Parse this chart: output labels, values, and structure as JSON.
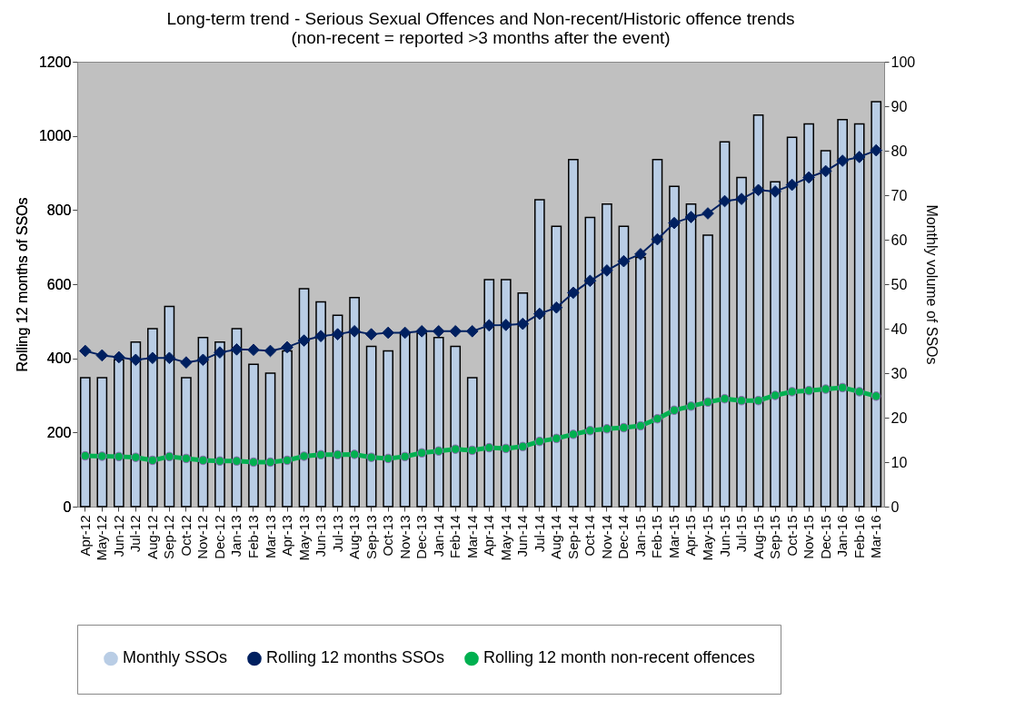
{
  "chart_data": {
    "type": "bar",
    "title": "Long-term trend - Serious Sexual Offences and Non-recent/Historic offence trends",
    "subtitle": "(non-recent = reported >3 months after the event)",
    "ylabel": "Rolling 12 months of SSOs",
    "y2label": "Monthly volume of SSOs",
    "categories": [
      "Apr-12",
      "May-12",
      "Jun-12",
      "Jul-12",
      "Aug-12",
      "Sep-12",
      "Oct-12",
      "Nov-12",
      "Dec-12",
      "Jan-13",
      "Feb-13",
      "Mar-13",
      "Apr-13",
      "May-13",
      "Jun-13",
      "Jul-13",
      "Aug-13",
      "Sep-13",
      "Oct-13",
      "Nov-13",
      "Dec-13",
      "Jan-14",
      "Feb-14",
      "Mar-14",
      "Apr-14",
      "May-14",
      "Jun-14",
      "Jul-14",
      "Aug-14",
      "Sep-14",
      "Oct-14",
      "Nov-14",
      "Dec-14",
      "Jan-15",
      "Feb-15",
      "Mar-15",
      "Apr-15",
      "May-15",
      "Jun-15",
      "Jul-15",
      "Aug-15",
      "Sep-15",
      "Oct-15",
      "Nov-15",
      "Dec-15",
      "Jan-16",
      "Feb-16",
      "Mar-16"
    ],
    "series": [
      {
        "name": "Monthly SSOs",
        "axis": "y2",
        "color": "#b9cde5",
        "values": [
          29,
          29,
          33,
          37,
          40,
          45,
          29,
          38,
          37,
          40,
          32,
          30,
          35,
          49,
          46,
          43,
          47,
          36,
          35,
          39,
          39,
          38,
          36,
          29,
          51,
          51,
          48,
          69,
          63,
          78,
          65,
          68,
          63,
          56,
          78,
          72,
          68,
          61,
          82,
          74,
          88,
          73,
          83,
          86,
          80,
          87,
          86,
          91
        ]
      },
      {
        "name": "Rolling 12 months SSOs",
        "type": "line",
        "marker": "diamond",
        "color": "#002060",
        "values": [
          420,
          408,
          403,
          396,
          401,
          401,
          389,
          396,
          416,
          424,
          423,
          420,
          430,
          448,
          460,
          465,
          473,
          465,
          469,
          469,
          473,
          473,
          473,
          473,
          489,
          490,
          493,
          520,
          537,
          577,
          609,
          637,
          662,
          681,
          721,
          765,
          781,
          791,
          824,
          830,
          854,
          850,
          868,
          888,
          905,
          933,
          943,
          961
        ]
      },
      {
        "name": "Rolling 12 month non-recent offences",
        "type": "line",
        "marker": "circle",
        "color": "#00b050",
        "values": [
          137,
          136,
          135,
          133,
          125,
          135,
          130,
          125,
          123,
          123,
          120,
          120,
          125,
          136,
          140,
          140,
          141,
          133,
          130,
          135,
          145,
          150,
          155,
          152,
          159,
          157,
          162,
          176,
          184,
          195,
          205,
          210,
          213,
          218,
          237,
          260,
          271,
          282,
          291,
          286,
          286,
          300,
          310,
          313,
          317,
          321,
          310,
          298
        ]
      }
    ],
    "ylim": [
      0,
      1200
    ],
    "yticks": [
      0,
      200,
      400,
      600,
      800,
      1000,
      1200
    ],
    "y2lim": [
      0,
      100
    ],
    "y2ticks": [
      0,
      10,
      20,
      30,
      40,
      50,
      60,
      70,
      80,
      90,
      100
    ],
    "grid": false,
    "legend": "bottom"
  }
}
